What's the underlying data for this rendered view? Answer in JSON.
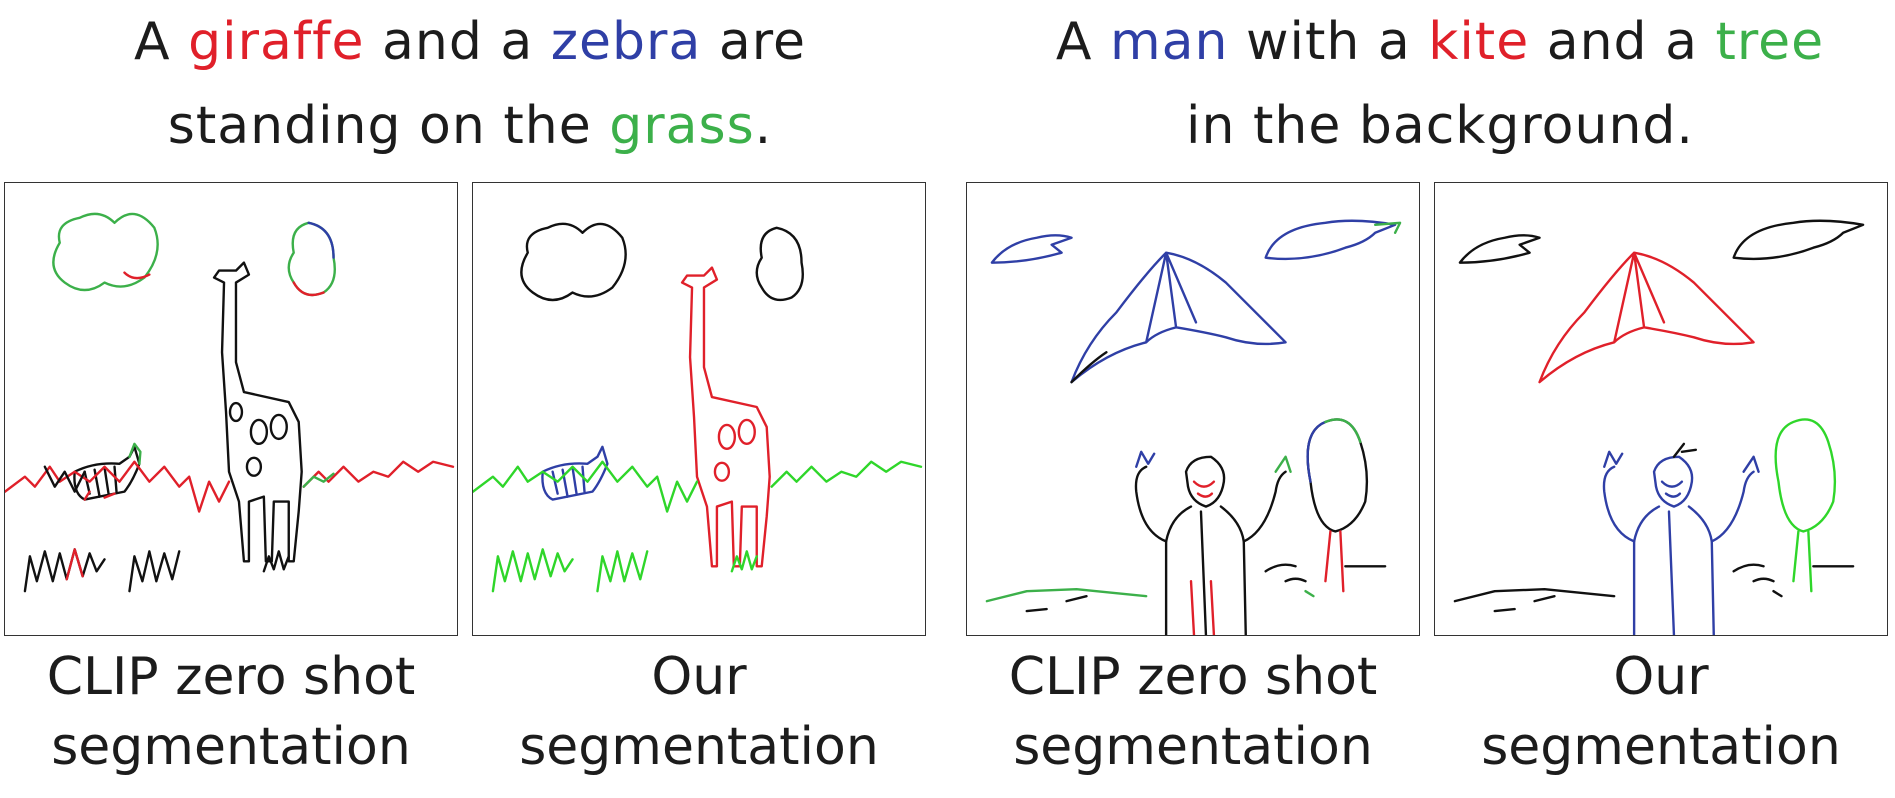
{
  "caption_left": {
    "line1": [
      "A ",
      "giraffe",
      " and a ",
      "zebra",
      " are"
    ],
    "line2": [
      "standing on the ",
      "grass",
      "."
    ]
  },
  "caption_right": {
    "line1": [
      "A ",
      "man",
      " with a ",
      "kite",
      " and a ",
      "tree"
    ],
    "line2": [
      "in the background."
    ]
  },
  "colors": {
    "red": "#e0202a",
    "blue": "#2f3fa6",
    "green": "#3cb04a",
    "black": "#111111"
  },
  "labels": {
    "p1": [
      "CLIP zero shot",
      "segmentation"
    ],
    "p2": [
      "Our",
      "segmentation"
    ],
    "p3": [
      "CLIP zero shot",
      "segmentation"
    ],
    "p4": [
      "Our",
      "segmentation"
    ]
  }
}
